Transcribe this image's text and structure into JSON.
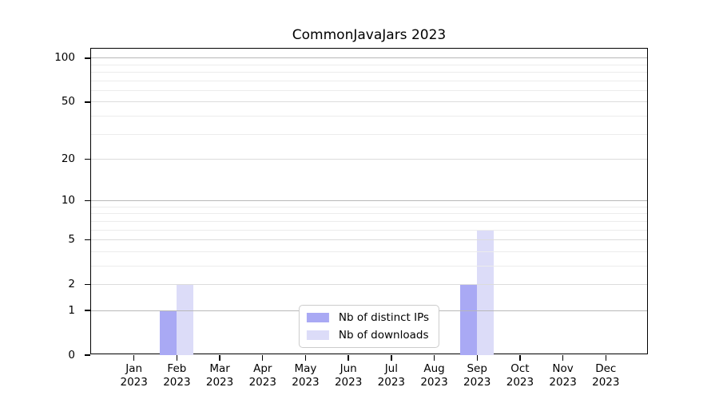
{
  "title": "CommonJavaJars 2023",
  "colors": {
    "background": "#ffffff",
    "axis": "#000000",
    "grid_decade": "#b8b8b8",
    "grid_mid": "#dcdcdc",
    "grid_minor": "#ececec",
    "legend_border": "#cccccc",
    "series_ips": "#a9a9f4",
    "series_downloads": "#dcdcf8"
  },
  "y_axis": {
    "tick_values": [
      0,
      1,
      2,
      5,
      10,
      20,
      50,
      100
    ],
    "tick_labels": [
      "0",
      "1",
      "2",
      "5",
      "10",
      "20",
      "50",
      "100"
    ],
    "decade_grid_values": [
      1,
      10,
      100
    ],
    "mid_grid_values": [
      2,
      5,
      20,
      50
    ],
    "minor_grid_values": [
      3,
      4,
      6,
      7,
      8,
      9,
      30,
      40,
      60,
      70,
      80,
      90
    ]
  },
  "x_axis": {
    "year": "2023",
    "months": [
      "Jan",
      "Feb",
      "Mar",
      "Apr",
      "May",
      "Jun",
      "Jul",
      "Aug",
      "Sep",
      "Oct",
      "Nov",
      "Dec"
    ]
  },
  "legend": {
    "items": [
      {
        "label": "Nb of distinct IPs"
      },
      {
        "label": "Nb of downloads"
      }
    ]
  },
  "chart_data": {
    "type": "bar",
    "title": "CommonJavaJars 2023",
    "categories": [
      "Jan 2023",
      "Feb 2023",
      "Mar 2023",
      "Apr 2023",
      "May 2023",
      "Jun 2023",
      "Jul 2023",
      "Aug 2023",
      "Sep 2023",
      "Oct 2023",
      "Nov 2023",
      "Dec 2023"
    ],
    "series": [
      {
        "name": "Nb of distinct IPs",
        "color": "#a9a9f4",
        "values": [
          0,
          1,
          0,
          0,
          0,
          0,
          0,
          0,
          2,
          0,
          0,
          0
        ]
      },
      {
        "name": "Nb of downloads",
        "color": "#dcdcf8",
        "values": [
          0,
          2,
          0,
          0,
          0,
          0,
          0,
          0,
          6,
          0,
          0,
          0
        ]
      }
    ],
    "yscale": "log1p",
    "ylim": [
      0,
      116
    ],
    "y_ticks": [
      0,
      1,
      2,
      5,
      10,
      20,
      50,
      100
    ],
    "grid": "both",
    "grid_above_bars": true,
    "legend_position": "lower center"
  }
}
